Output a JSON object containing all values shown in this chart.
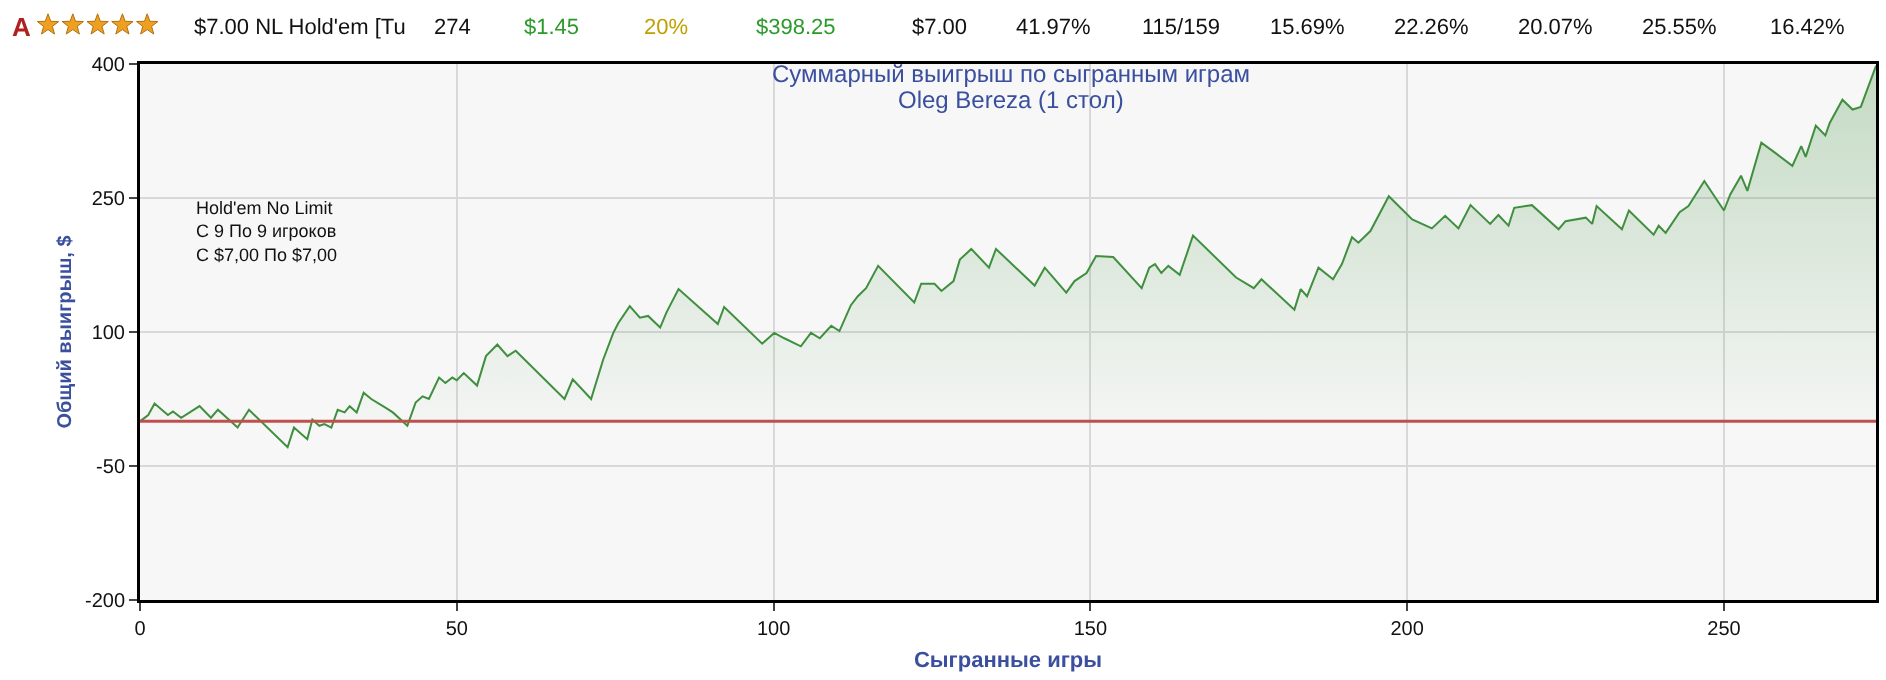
{
  "chart_data": {
    "type": "area",
    "title": "Суммарный выигрыш по сыгранным играм",
    "subtitle": "Oleg Bereza (1 стол)",
    "xlabel": "Сыгранные игры",
    "ylabel": "Общий выигрыш, $",
    "annotations": [
      "Hold'em No Limit\nС 9 По 9 игроков\nС $7,00 По $7,00",
      "A",
      "$7.00 NL Hold'em [Tu",
      "274",
      "$1.45",
      "20%",
      "$398.25",
      "$7.00",
      "41.97%",
      "115/159",
      "15.69%",
      "22.26%",
      "20.07%",
      "25.55%",
      "16.42%"
    ],
    "x": [
      0,
      1.3,
      2.3,
      4.4,
      5.2,
      6.5,
      9.4,
      11.2,
      12.3,
      15.4,
      17.2,
      23.3,
      24.3,
      26.4,
      27.2,
      28.3,
      29.1,
      30.2,
      31.2,
      32.3,
      33.1,
      34.2,
      35.3,
      36.5,
      38.8,
      39.9,
      42.2,
      43.5,
      44.6,
      45.6,
      47.2,
      48.2,
      49.3,
      50,
      51.1,
      53.2,
      54.6,
      56.4,
      58,
      59.3,
      67,
      68.3,
      71.2,
      73.1,
      74.7,
      75.5,
      77.3,
      78.9,
      80.2,
      82.1,
      83.1,
      85,
      91.2,
      92.2,
      98.2,
      100.1,
      101.7,
      104.3,
      105.9,
      107.3,
      109.1,
      110.4,
      112.2,
      113.3,
      114.6,
      116.5,
      122.2,
      123.3,
      125.4,
      126.5,
      128.4,
      129.4,
      131.2,
      134,
      135.1,
      141.2,
      142.8,
      146.2,
      147.5,
      149.4,
      150.9,
      153.6,
      158.1,
      159.3,
      160.2,
      161.2,
      162.3,
      164.1,
      166.2,
      173,
      175.8,
      177,
      182.2,
      183.2,
      184.2,
      186,
      188.3,
      189.7,
      191.3,
      192.3,
      194.2,
      197.1,
      200.8,
      203.9,
      206,
      208.1,
      210,
      213.1,
      214.4,
      216,
      216.9,
      219.7,
      223.9,
      225,
      228.2,
      229.2,
      229.9,
      233.9,
      235,
      238.9,
      239.7,
      240.8,
      243,
      244.4,
      246.9,
      250,
      251,
      252.7,
      253.7,
      255.9,
      258.2,
      260.8,
      262.2,
      262.9,
      264.5,
      266,
      266.7,
      268.7,
      270.3,
      271.6,
      274
    ],
    "series": [
      {
        "color": "#3f8f3f",
        "values": [
          0,
          7,
          20,
          7,
          11,
          4,
          17,
          4,
          13,
          -7,
          13,
          -29,
          -7,
          -20,
          2,
          -5,
          -3,
          -7,
          13,
          10,
          17,
          10,
          32,
          25,
          15,
          10,
          -5,
          21,
          28,
          25,
          49,
          43,
          49,
          46,
          54,
          40,
          73,
          86,
          73,
          79,
          25,
          47,
          25,
          69,
          99,
          110,
          129,
          116,
          118,
          105,
          122,
          148,
          109,
          128,
          87,
          99,
          93,
          84,
          99,
          93,
          107,
          101,
          130,
          140,
          149,
          174,
          133,
          154,
          154,
          146,
          157,
          181,
          193,
          172,
          193,
          152,
          172,
          144,
          157,
          166,
          185,
          184,
          149,
          172,
          176,
          166,
          174,
          164,
          208,
          161,
          149,
          159,
          125,
          148,
          140,
          172,
          159,
          176,
          206,
          200,
          213,
          252,
          226,
          216,
          230,
          216,
          242,
          221,
          231,
          219,
          239,
          242,
          215,
          224,
          228,
          221,
          241,
          215,
          236,
          209,
          219,
          211,
          234,
          241,
          269,
          236,
          254,
          275,
          258,
          312,
          300,
          286,
          308,
          296,
          331,
          320,
          334,
          360,
          349,
          352,
          398
        ]
      }
    ],
    "xlim": [
      0,
      274
    ],
    "ylim": [
      -200,
      400
    ],
    "xticks": [
      0,
      50,
      100,
      150,
      200,
      250
    ],
    "yticks": [
      -200,
      -50,
      100,
      250,
      400
    ],
    "ref_lines": [
      {
        "axis": "y",
        "value": 0,
        "color": "#c0504d"
      }
    ],
    "grid": true,
    "marker": "none",
    "line_style": "solid"
  }
}
